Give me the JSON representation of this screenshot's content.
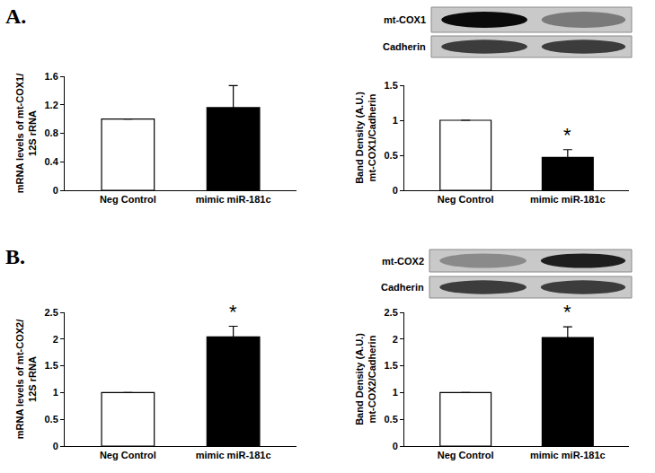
{
  "panel_labels": [
    "A.",
    "B."
  ],
  "chart_data": [
    {
      "type": "bar",
      "y_label": "mRNA levels of mt-COX1/\n12S rRNA",
      "categories": [
        "Neg Control",
        "mimic miR-181c"
      ],
      "values": [
        1,
        1.16
      ],
      "errors": [
        0,
        0.31
      ],
      "colors": [
        "#ffffff",
        "#000000"
      ],
      "ylim": [
        0,
        1.6
      ],
      "yticks": [
        0,
        0.4,
        0.8,
        1.2,
        1.6
      ],
      "grid": false
    },
    {
      "type": "bar",
      "y_label": "Band Density (A.U.)\nmt-COX1/Cadherin",
      "categories": [
        "Neg Control",
        "mimic miR-181c"
      ],
      "values": [
        1,
        0.47
      ],
      "errors": [
        0,
        0.11
      ],
      "colors": [
        "#ffffff",
        "#000000"
      ],
      "ylim": [
        0,
        1.5
      ],
      "yticks": [
        0,
        0.5,
        1,
        1.5
      ],
      "grid": false,
      "annotations": [
        {
          "text": "*",
          "category": "mimic miR-181c"
        }
      ],
      "blot_labels": [
        "mt-COX1",
        "Cadherin"
      ]
    },
    {
      "type": "bar",
      "y_label": "mRNA levels of mt-COX2/\n12S rRNA",
      "categories": [
        "Neg Control",
        "mimic miR-181c"
      ],
      "values": [
        1,
        2.04
      ],
      "errors": [
        0,
        0.2
      ],
      "colors": [
        "#ffffff",
        "#000000"
      ],
      "ylim": [
        0,
        2.5
      ],
      "yticks": [
        0,
        0.5,
        1,
        1.5,
        2,
        2.5
      ],
      "grid": false,
      "annotations": [
        {
          "text": "*",
          "category": "mimic miR-181c"
        }
      ]
    },
    {
      "type": "bar",
      "y_label": "Band Density (A.U.)\nmt-COX2/Cadherin",
      "categories": [
        "Neg Control",
        "mimic miR-181c"
      ],
      "values": [
        1,
        2.03
      ],
      "errors": [
        0,
        0.2
      ],
      "colors": [
        "#ffffff",
        "#000000"
      ],
      "ylim": [
        0,
        2.5
      ],
      "yticks": [
        0,
        0.5,
        1,
        1.5,
        2,
        2.5
      ],
      "grid": false,
      "annotations": [
        {
          "text": "*",
          "category": "mimic miR-181c"
        }
      ],
      "blot_labels": [
        "mt-COX2",
        "Cadherin"
      ]
    }
  ]
}
